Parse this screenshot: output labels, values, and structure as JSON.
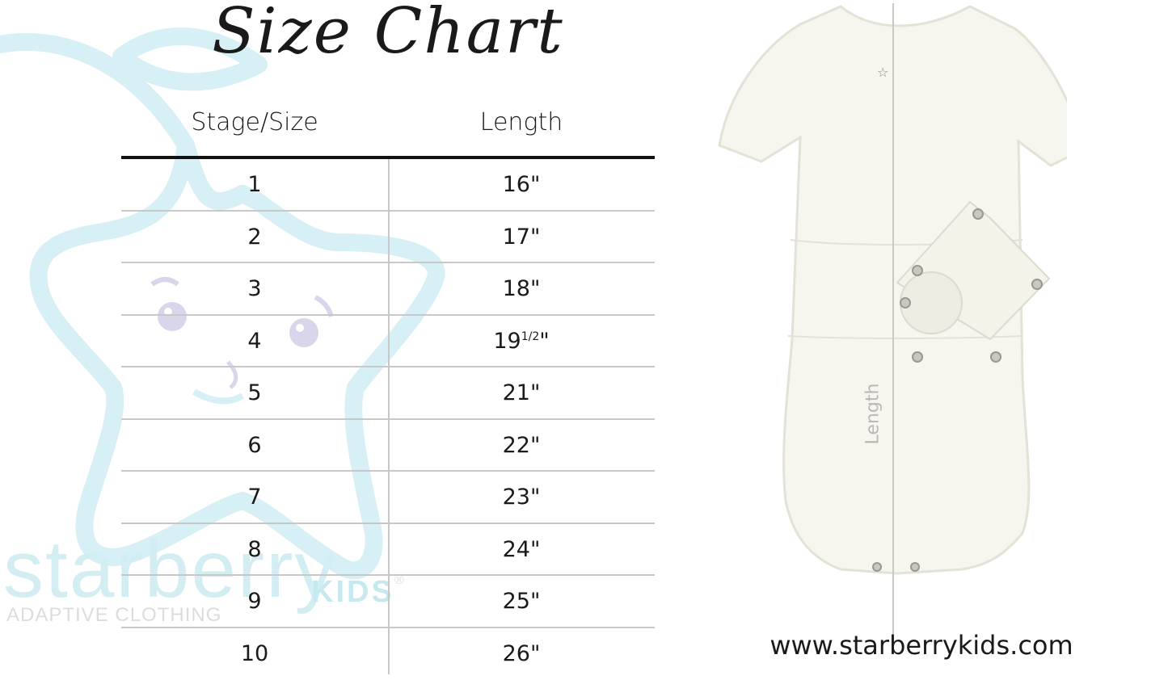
{
  "title": "Size Chart",
  "table": {
    "headers": [
      "Stage/Size",
      "Length"
    ],
    "rows": [
      {
        "size": "1",
        "length": "16\""
      },
      {
        "size": "2",
        "length": "17\""
      },
      {
        "size": "3",
        "length": "18\""
      },
      {
        "size": "4",
        "length": "19",
        "length_sup": "1/2",
        "length_suffix": "\""
      },
      {
        "size": "5",
        "length": "21\""
      },
      {
        "size": "6",
        "length": "22\""
      },
      {
        "size": "7",
        "length": "23\""
      },
      {
        "size": "8",
        "length": "24\""
      },
      {
        "size": "9",
        "length": "25\""
      },
      {
        "size": "10",
        "length": "26\""
      }
    ]
  },
  "watermark": {
    "brand": "starberry",
    "brand_suffix": "KIDS",
    "registered": "®",
    "tagline": "ADAPTIVE CLOTHING"
  },
  "garment": {
    "measure_label": "Length"
  },
  "website": "www.starberrykids.com",
  "colors": {
    "watermark_blue": "#d3eef3",
    "watermark_kids": "#c6e8ef",
    "face": "#d9d6ec",
    "garment": "#f7f6ee",
    "rule": "#111111",
    "grid": "#c8c8c8"
  }
}
